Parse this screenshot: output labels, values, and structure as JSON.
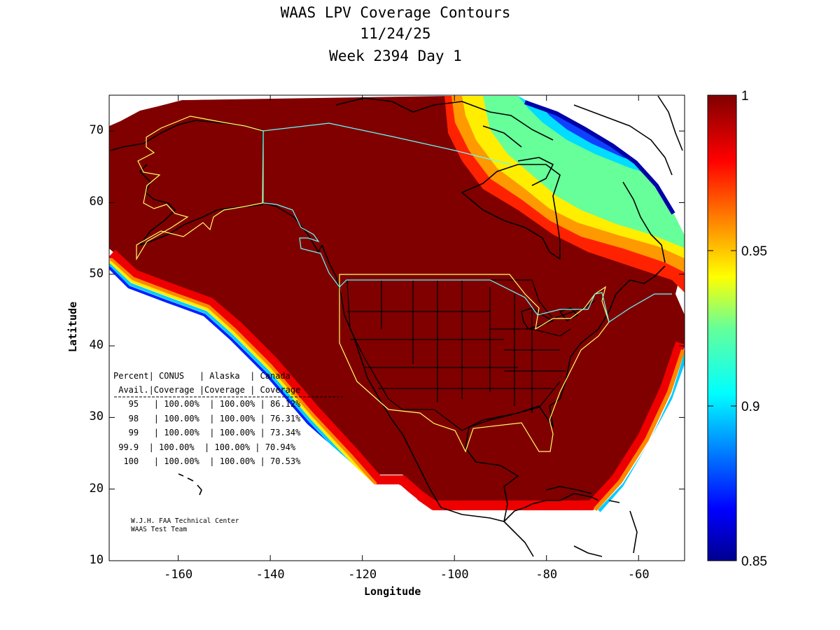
{
  "title": {
    "line1": "WAAS LPV Coverage Contours",
    "line2": "11/24/25",
    "line3": "Week 2394 Day 1"
  },
  "chart_data": {
    "type": "heatmap",
    "xlabel": "Longitude",
    "ylabel": "Latitude",
    "xlim": [
      -175,
      -50
    ],
    "ylim": [
      10,
      75
    ],
    "xticks": [
      -160,
      -140,
      -120,
      -100,
      -80,
      -60
    ],
    "yticks": [
      10,
      20,
      30,
      40,
      50,
      60,
      70
    ],
    "colorbar": {
      "range": [
        0.85,
        1
      ],
      "ticks": [
        1,
        0.95,
        0.9,
        0.85
      ],
      "tick_labels": [
        "1",
        "0.95",
        "0.9",
        "0.85"
      ],
      "colormap": "jet"
    },
    "coverage_table": {
      "header1": "Percent| CONUS   | Alaska  | Canada",
      "header2": " Avail.|Coverage |Coverage | Coverage",
      "separator": "-----------------------------------------",
      "rows": [
        {
          "percent": "95",
          "conus": "100.00%",
          "alaska": "100.00%",
          "canada": "86.12%"
        },
        {
          "percent": "98",
          "conus": "100.00%",
          "alaska": "100.00%",
          "canada": "76.31%"
        },
        {
          "percent": "99",
          "conus": "100.00%",
          "alaska": "100.00%",
          "canada": "73.34%"
        },
        {
          "percent": "99.9",
          "conus": "100.00%",
          "alaska": "100.00%",
          "canada": "70.94%"
        },
        {
          "percent": "100",
          "conus": "100.00%",
          "alaska": "100.00%",
          "canada": "70.53%"
        }
      ]
    }
  },
  "credits": {
    "line1": "W.J.H. FAA Technical Center",
    "line2": "WAAS Test Team"
  },
  "colors": {
    "coverage_max": "#800000",
    "coverage_min": "#00008f",
    "alaska_region_border": "#ffff66",
    "conus_region_border": "#ffff66",
    "canada_region_border": "#66ffff",
    "coastline": "#000000"
  }
}
